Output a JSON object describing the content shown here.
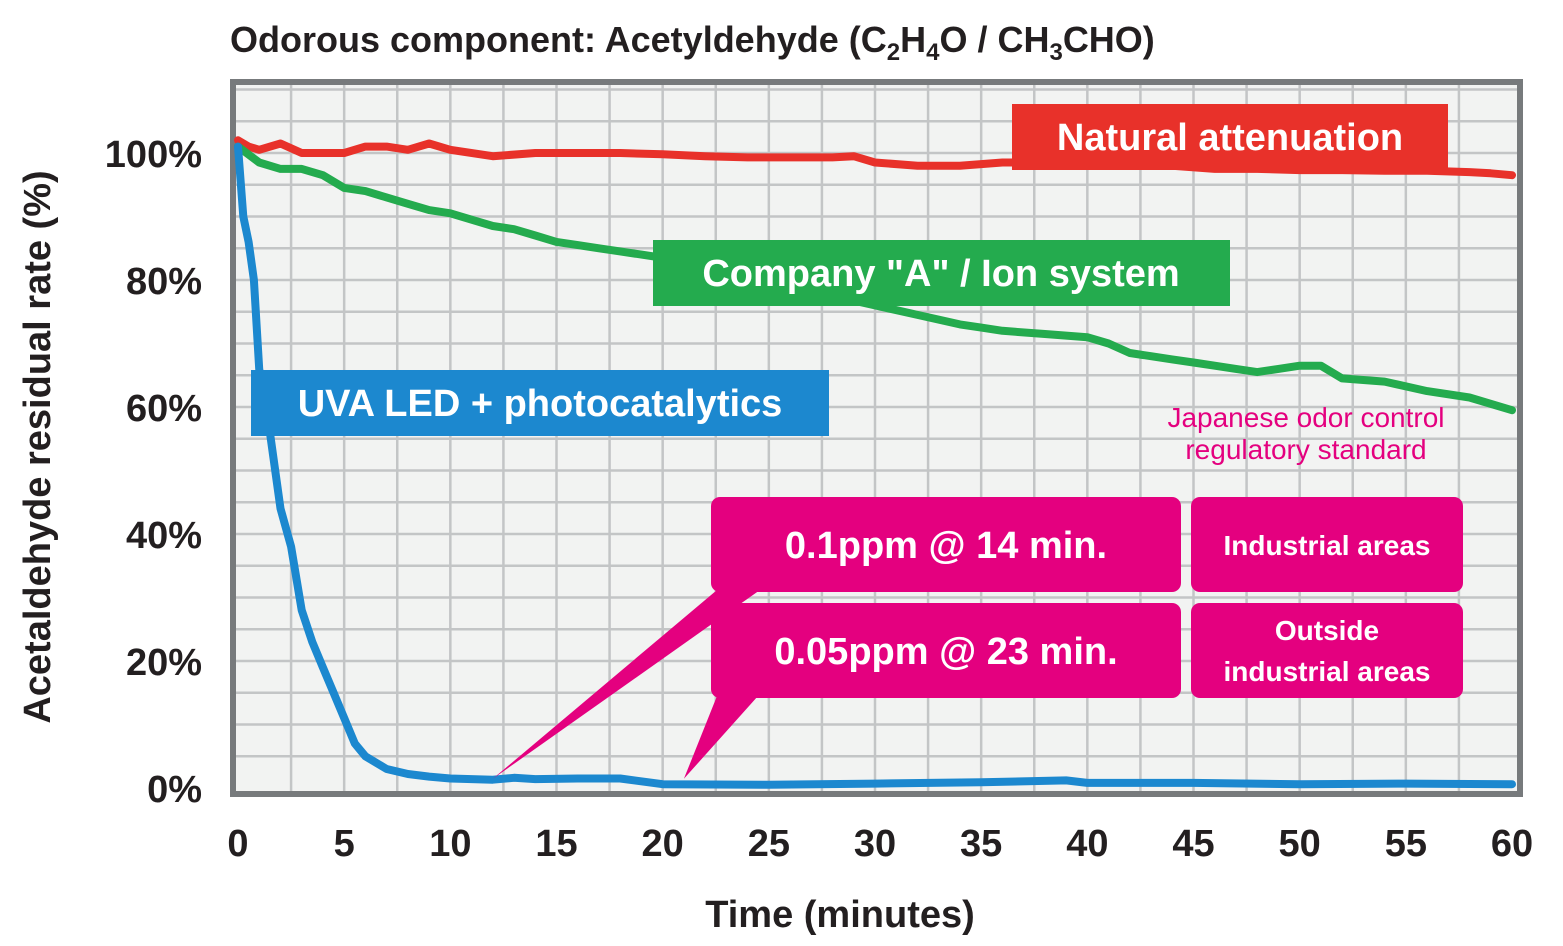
{
  "chart_data": {
    "type": "line",
    "title": "Odorous component: Acetyldehyde (C",
    "title_parts": {
      "prefix": "Odorous component: Acetyldehyde (C",
      "s1": "2",
      "p2": "H",
      "s2": "4",
      "p3": "O / CH",
      "s3": "3",
      "p4": "CHO)"
    },
    "xlabel": "Time (minutes)",
    "ylabel": "Acetaldehyde residual rate (%)",
    "xlim": [
      0,
      60
    ],
    "ylim": [
      0,
      110
    ],
    "x_ticks": [
      "0",
      "5",
      "10",
      "15",
      "20",
      "25",
      "30",
      "35",
      "40",
      "45",
      "50",
      "55",
      "60"
    ],
    "y_ticks": [
      {
        "value": 0,
        "label": "0%"
      },
      {
        "value": 20,
        "label": "20%"
      },
      {
        "value": 40,
        "label": "40%"
      },
      {
        "value": 60,
        "label": "60%"
      },
      {
        "value": 80,
        "label": "80%"
      },
      {
        "value": 100,
        "label": "100%"
      }
    ],
    "grid": true,
    "series": [
      {
        "name": "Natural attenuation",
        "color": "#e8312a",
        "x": [
          0,
          0.5,
          1,
          2,
          3,
          4,
          5,
          6,
          7,
          8,
          9,
          10,
          12,
          14,
          16,
          18,
          20,
          22,
          24,
          26,
          28,
          29,
          30,
          32,
          34,
          36,
          38,
          40,
          42,
          44,
          46,
          48,
          50,
          52,
          54,
          56,
          58,
          59,
          60
        ],
        "values": [
          102,
          101,
          100.5,
          101.5,
          100,
          100,
          100,
          101,
          101,
          100.5,
          101.5,
          100.5,
          99.5,
          100,
          100,
          100,
          99.8,
          99.5,
          99.3,
          99.3,
          99.3,
          99.5,
          98.5,
          98,
          98,
          98.5,
          98.5,
          98.5,
          98,
          98,
          97.5,
          97.5,
          97.3,
          97.3,
          97.2,
          97.2,
          97,
          96.8,
          96.5
        ]
      },
      {
        "name": "Company \"A\" / Ion system",
        "color": "#24ab4e",
        "x": [
          0,
          1,
          2,
          3,
          4,
          5,
          6,
          7,
          8,
          9,
          10,
          11,
          12,
          13,
          14,
          15,
          16,
          17,
          18,
          19,
          20,
          22,
          24,
          26,
          28,
          30,
          32,
          34,
          35,
          36,
          38,
          40,
          41,
          42,
          43,
          44,
          45,
          46,
          47,
          48,
          49,
          50,
          51,
          52,
          54,
          56,
          58,
          60
        ],
        "values": [
          101,
          98.5,
          97.5,
          97.5,
          96.5,
          94.5,
          94,
          93,
          92,
          91,
          90.5,
          89.5,
          88.5,
          88,
          87,
          86,
          85.5,
          85,
          84.5,
          84,
          83.5,
          82,
          80.5,
          79,
          77.5,
          76,
          74.5,
          73,
          72.5,
          72,
          71.5,
          71,
          70,
          68.5,
          68,
          67.5,
          67,
          66.5,
          66,
          65.5,
          66,
          66.5,
          66.5,
          64.5,
          64,
          62.5,
          61.5,
          59.5
        ]
      },
      {
        "name": "UVA LED + photocatalytics",
        "color": "#1c88cf",
        "x": [
          0,
          0.25,
          0.5,
          0.75,
          1,
          1.5,
          2,
          2.5,
          3,
          3.5,
          4,
          4.5,
          5,
          5.5,
          6,
          7,
          8,
          9,
          10,
          12,
          13,
          14,
          16,
          18,
          20,
          25,
          30,
          35,
          39,
          40,
          45,
          50,
          55,
          60
        ],
        "values": [
          101,
          90,
          86,
          80,
          66,
          56,
          44,
          38,
          28,
          23,
          19,
          15,
          11,
          7,
          5,
          3,
          2.2,
          1.8,
          1.5,
          1.3,
          1.6,
          1.4,
          1.5,
          1.5,
          0.6,
          0.5,
          0.7,
          0.9,
          1.2,
          0.8,
          0.8,
          0.6,
          0.7,
          0.6
        ]
      }
    ],
    "series_labels": [
      {
        "series": "Natural attenuation",
        "text": "Natural attenuation",
        "color": "#e8312a"
      },
      {
        "series": "Company \"A\" / Ion system",
        "text": "Company \"A\" / Ion system",
        "color": "#24ab4e"
      },
      {
        "series": "UVA LED + photocatalytics",
        "text": "UVA LED + photocatalytics",
        "color": "#1c88cf"
      }
    ],
    "annotations": {
      "standard_title_line1": "Japanese odor control",
      "standard_title_line2": "regulatory standard",
      "callouts": [
        {
          "text": "0.1ppm @ 14 min.",
          "area_line1": "Industrial areas",
          "area_line2": "",
          "pointer_x": 12
        },
        {
          "text": "0.05ppm @ 23 min.",
          "area_line1": "Outside",
          "area_line2": "industrial areas",
          "pointer_x": 21
        }
      ],
      "callout_color": "#e4007f"
    }
  }
}
